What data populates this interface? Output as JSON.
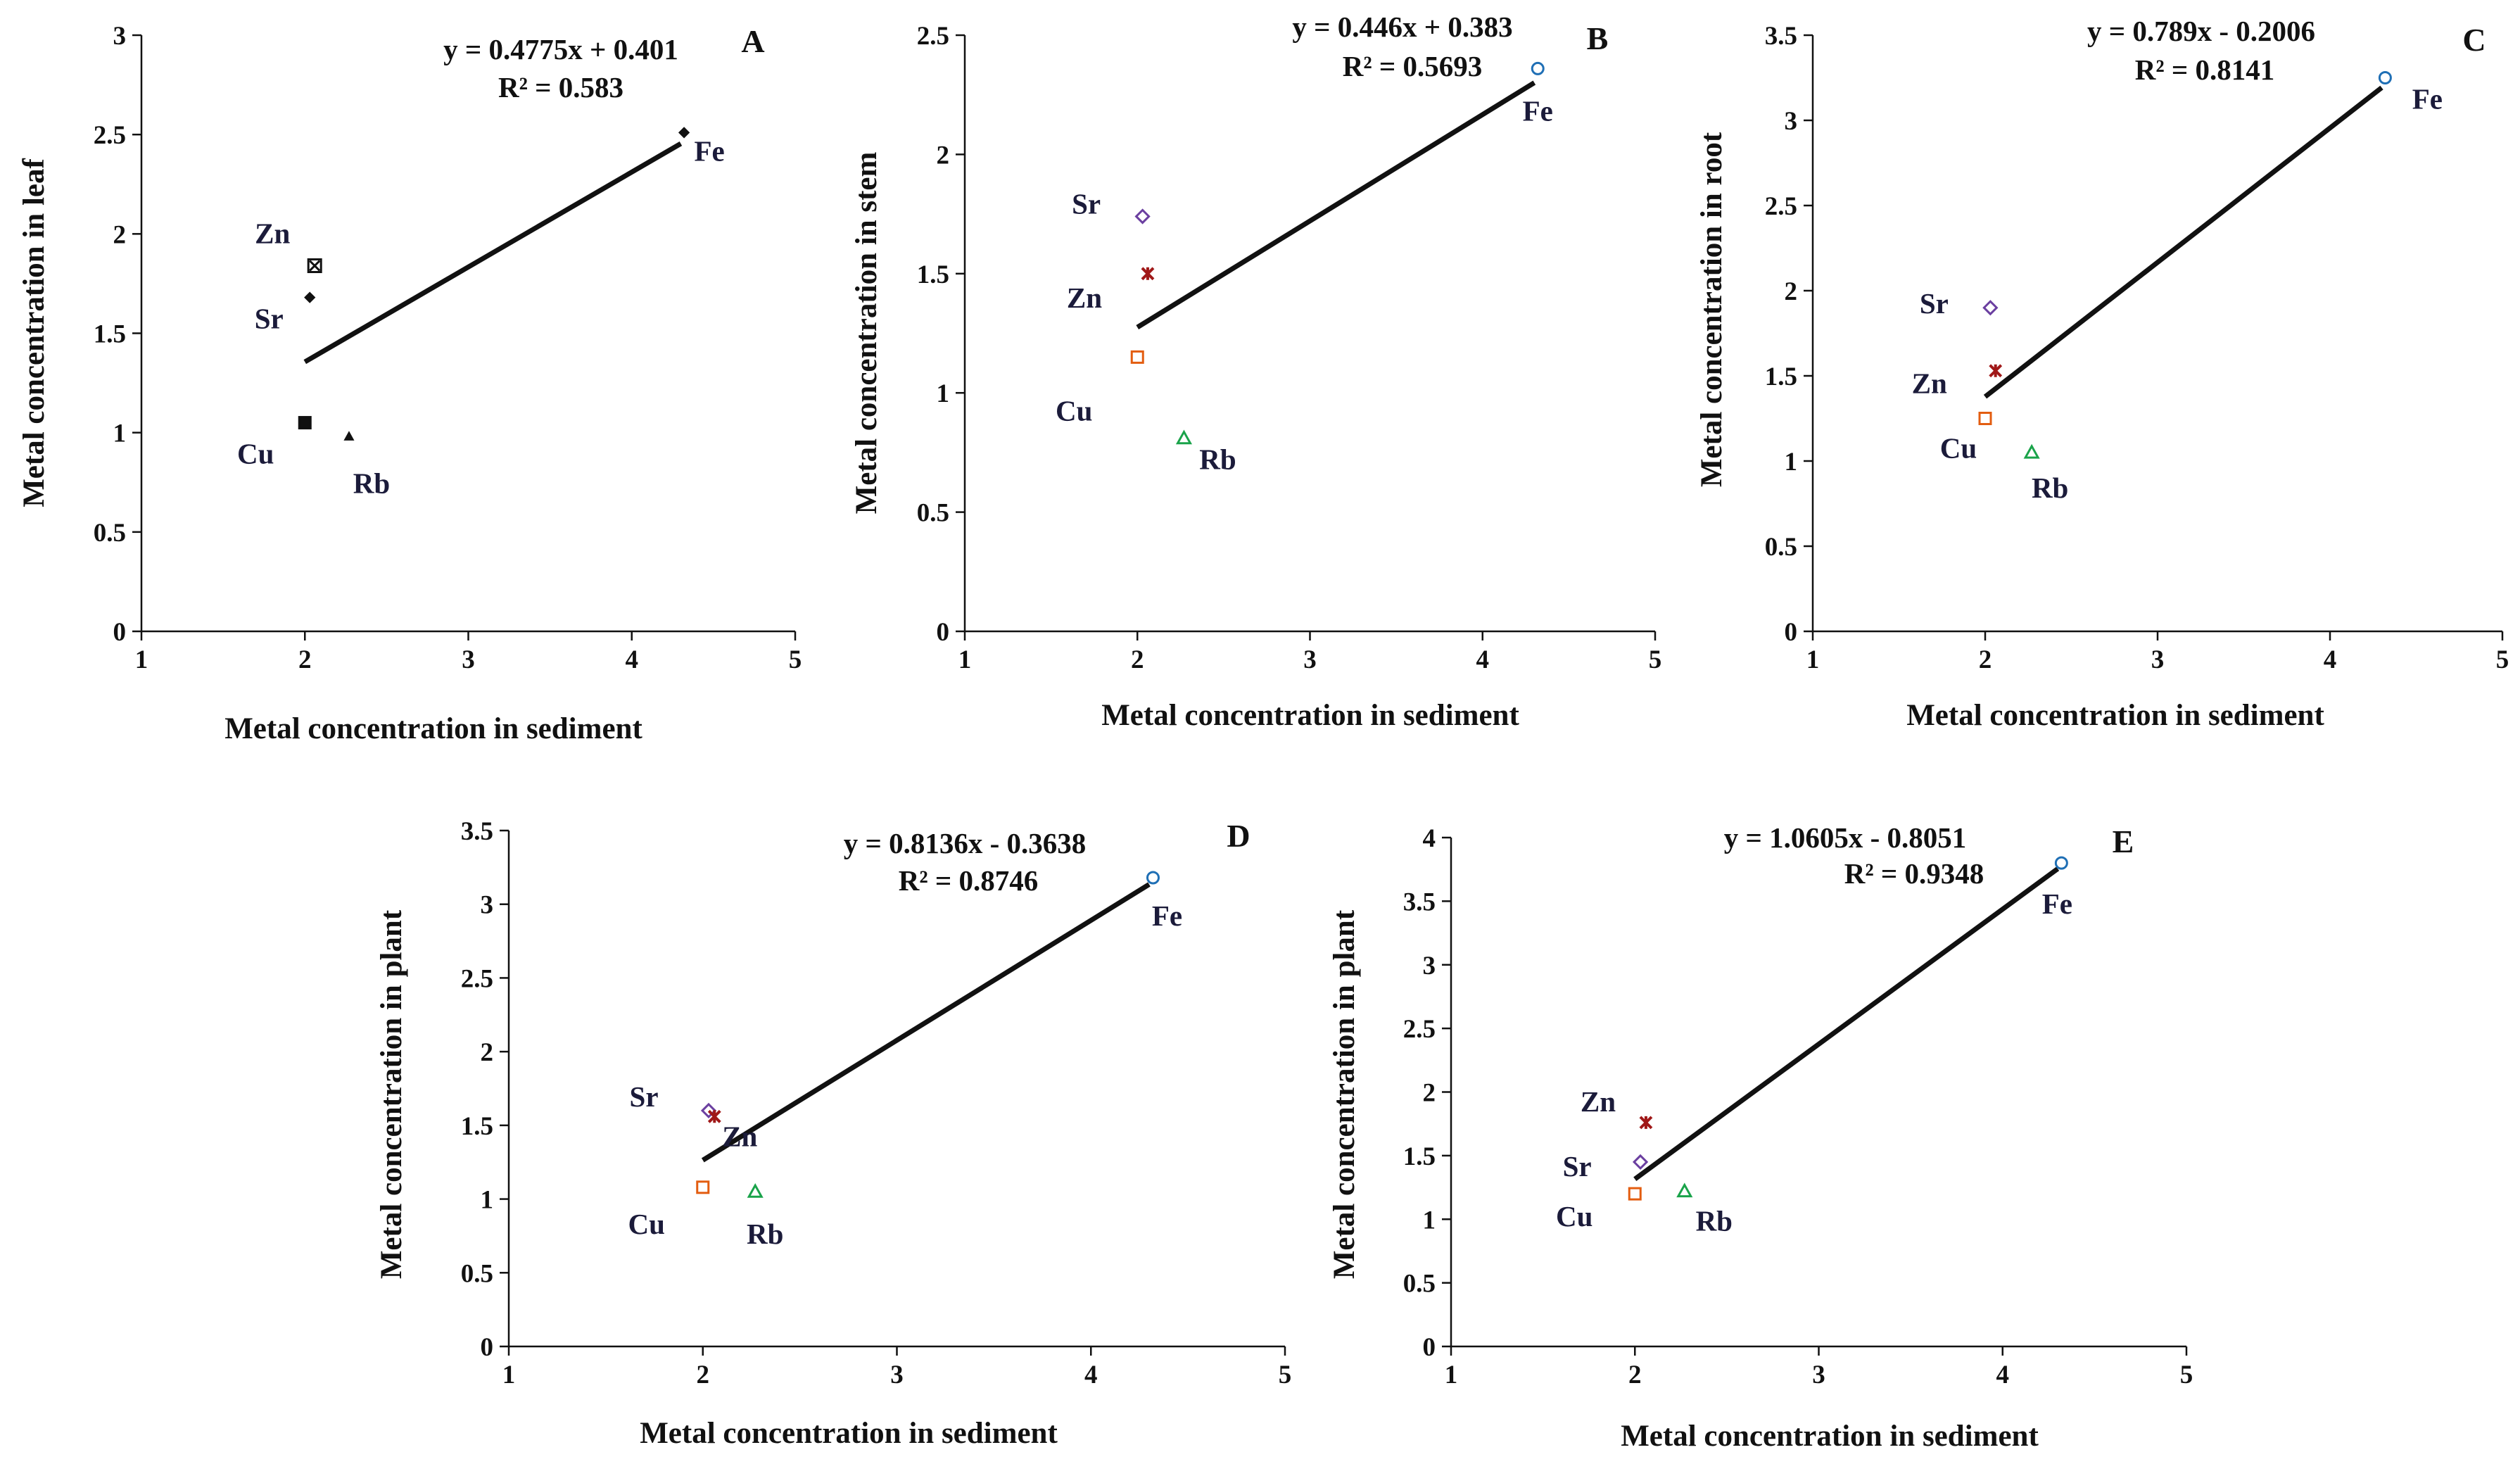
{
  "colors": {
    "Fe": "#1f6fb5",
    "Sr": "#6b3fa0",
    "Zn": "#a01818",
    "Cu": "#e35d10",
    "Rb": "#1aa34a",
    "black": "#111111"
  },
  "chart_data": [
    {
      "id": "A",
      "type": "scatter",
      "panel_label": "A",
      "xlabel": "Metal concentration in sediment",
      "ylabel": "Metal concentration in leaf",
      "xlim": [
        1,
        5
      ],
      "ylim": [
        0,
        3
      ],
      "xticks": [
        "1",
        "2",
        "3",
        "4",
        "5"
      ],
      "yticks": [
        "0",
        "0.5",
        "1",
        "1.5",
        "2",
        "2.5",
        "3"
      ],
      "equation": "y = 0.4775x + 0.401",
      "r_squared": "R² = 0.583",
      "trendline": {
        "x": [
          2,
          4.3
        ],
        "slope": 0.4775,
        "intercept": 0.401
      },
      "points": [
        {
          "name": "Fe",
          "x": 4.32,
          "y": 2.51,
          "marker": "diamond",
          "style": "filled"
        },
        {
          "name": "Zn",
          "x": 2.06,
          "y": 1.84,
          "marker": "xsquare",
          "style": "filled"
        },
        {
          "name": "Sr",
          "x": 2.03,
          "y": 1.68,
          "marker": "diamond",
          "style": "filled"
        },
        {
          "name": "Cu",
          "x": 2.0,
          "y": 1.05,
          "marker": "square",
          "style": "filled"
        },
        {
          "name": "Rb",
          "x": 2.27,
          "y": 0.98,
          "marker": "triangle",
          "style": "filled"
        }
      ]
    },
    {
      "id": "B",
      "type": "scatter",
      "panel_label": "B",
      "xlabel": "Metal concentration in sediment",
      "ylabel": "Metal concentration in stem",
      "xlim": [
        1,
        5
      ],
      "ylim": [
        0,
        2.5
      ],
      "xticks": [
        "1",
        "2",
        "3",
        "4",
        "5"
      ],
      "yticks": [
        "0",
        "0.5",
        "1",
        "1.5",
        "2",
        "2.5"
      ],
      "equation": "y = 0.446x + 0.383",
      "r_squared": "R² = 0.5693",
      "trendline": {
        "x": [
          2,
          4.3
        ],
        "slope": 0.446,
        "intercept": 0.383
      },
      "points": [
        {
          "name": "Fe",
          "x": 4.32,
          "y": 2.36,
          "marker": "circle",
          "style": "open"
        },
        {
          "name": "Sr",
          "x": 2.03,
          "y": 1.74,
          "marker": "diamond",
          "style": "open"
        },
        {
          "name": "Zn",
          "x": 2.06,
          "y": 1.5,
          "marker": "star",
          "style": "filled"
        },
        {
          "name": "Cu",
          "x": 2.0,
          "y": 1.15,
          "marker": "square",
          "style": "open"
        },
        {
          "name": "Rb",
          "x": 2.27,
          "y": 0.81,
          "marker": "triangle",
          "style": "open"
        }
      ]
    },
    {
      "id": "C",
      "type": "scatter",
      "panel_label": "C",
      "xlabel": "Metal concentration in sediment",
      "ylabel": "Metal concentration in root",
      "xlim": [
        1,
        5
      ],
      "ylim": [
        0,
        3.5
      ],
      "xticks": [
        "1",
        "2",
        "3",
        "4",
        "5"
      ],
      "yticks": [
        "0",
        "0.5",
        "1",
        "1.5",
        "2",
        "2.5",
        "3",
        "3.5"
      ],
      "equation": "y = 0.789x - 0.2006",
      "r_squared": "R² = 0.8141",
      "trendline": {
        "x": [
          2,
          4.3
        ],
        "slope": 0.789,
        "intercept": -0.2006
      },
      "points": [
        {
          "name": "Fe",
          "x": 4.32,
          "y": 3.25,
          "marker": "circle",
          "style": "open"
        },
        {
          "name": "Sr",
          "x": 2.03,
          "y": 1.9,
          "marker": "diamond",
          "style": "open"
        },
        {
          "name": "Zn",
          "x": 2.06,
          "y": 1.53,
          "marker": "star",
          "style": "filled"
        },
        {
          "name": "Cu",
          "x": 2.0,
          "y": 1.25,
          "marker": "square",
          "style": "open"
        },
        {
          "name": "Rb",
          "x": 2.27,
          "y": 1.05,
          "marker": "triangle",
          "style": "open"
        }
      ]
    },
    {
      "id": "D",
      "type": "scatter",
      "panel_label": "D",
      "xlabel": "Metal concentration in sediment",
      "ylabel": "Metal concentration in plant",
      "xlim": [
        1,
        5
      ],
      "ylim": [
        0,
        3.5
      ],
      "xticks": [
        "1",
        "2",
        "3",
        "4",
        "5"
      ],
      "yticks": [
        "0",
        "0.5",
        "1",
        "1.5",
        "2",
        "2.5",
        "3",
        "3.5"
      ],
      "equation": "y = 0.8136x - 0.3638",
      "r_squared": "R² = 0.8746",
      "trendline": {
        "x": [
          2,
          4.3
        ],
        "slope": 0.8136,
        "intercept": -0.3638
      },
      "points": [
        {
          "name": "Fe",
          "x": 4.32,
          "y": 3.18,
          "marker": "circle",
          "style": "open"
        },
        {
          "name": "Sr",
          "x": 2.03,
          "y": 1.6,
          "marker": "diamond",
          "style": "open"
        },
        {
          "name": "Zn",
          "x": 2.06,
          "y": 1.56,
          "marker": "star",
          "style": "filled"
        },
        {
          "name": "Cu",
          "x": 2.0,
          "y": 1.08,
          "marker": "square",
          "style": "open"
        },
        {
          "name": "Rb",
          "x": 2.27,
          "y": 1.05,
          "marker": "triangle",
          "style": "open"
        }
      ]
    },
    {
      "id": "E",
      "type": "scatter",
      "panel_label": "E",
      "xlabel": "Metal concentration in sediment",
      "ylabel": "Metal concentration in plant",
      "xlim": [
        1,
        5
      ],
      "ylim": [
        0,
        4
      ],
      "xticks": [
        "1",
        "2",
        "3",
        "4",
        "5"
      ],
      "yticks": [
        "0",
        "0.5",
        "1",
        "1.5",
        "2",
        "2.5",
        "3",
        "3.5",
        "4"
      ],
      "equation": "y = 1.0605x - 0.8051",
      "r_squared": "R² = 0.9348",
      "trendline": {
        "x": [
          2,
          4.3
        ],
        "slope": 1.0605,
        "intercept": -0.8051
      },
      "points": [
        {
          "name": "Fe",
          "x": 4.32,
          "y": 3.8,
          "marker": "circle",
          "style": "open"
        },
        {
          "name": "Zn",
          "x": 2.06,
          "y": 1.76,
          "marker": "star",
          "style": "filled"
        },
        {
          "name": "Sr",
          "x": 2.03,
          "y": 1.45,
          "marker": "diamond",
          "style": "open"
        },
        {
          "name": "Cu",
          "x": 2.0,
          "y": 1.2,
          "marker": "square",
          "style": "open"
        },
        {
          "name": "Rb",
          "x": 2.27,
          "y": 1.22,
          "marker": "triangle",
          "style": "open"
        }
      ]
    }
  ]
}
